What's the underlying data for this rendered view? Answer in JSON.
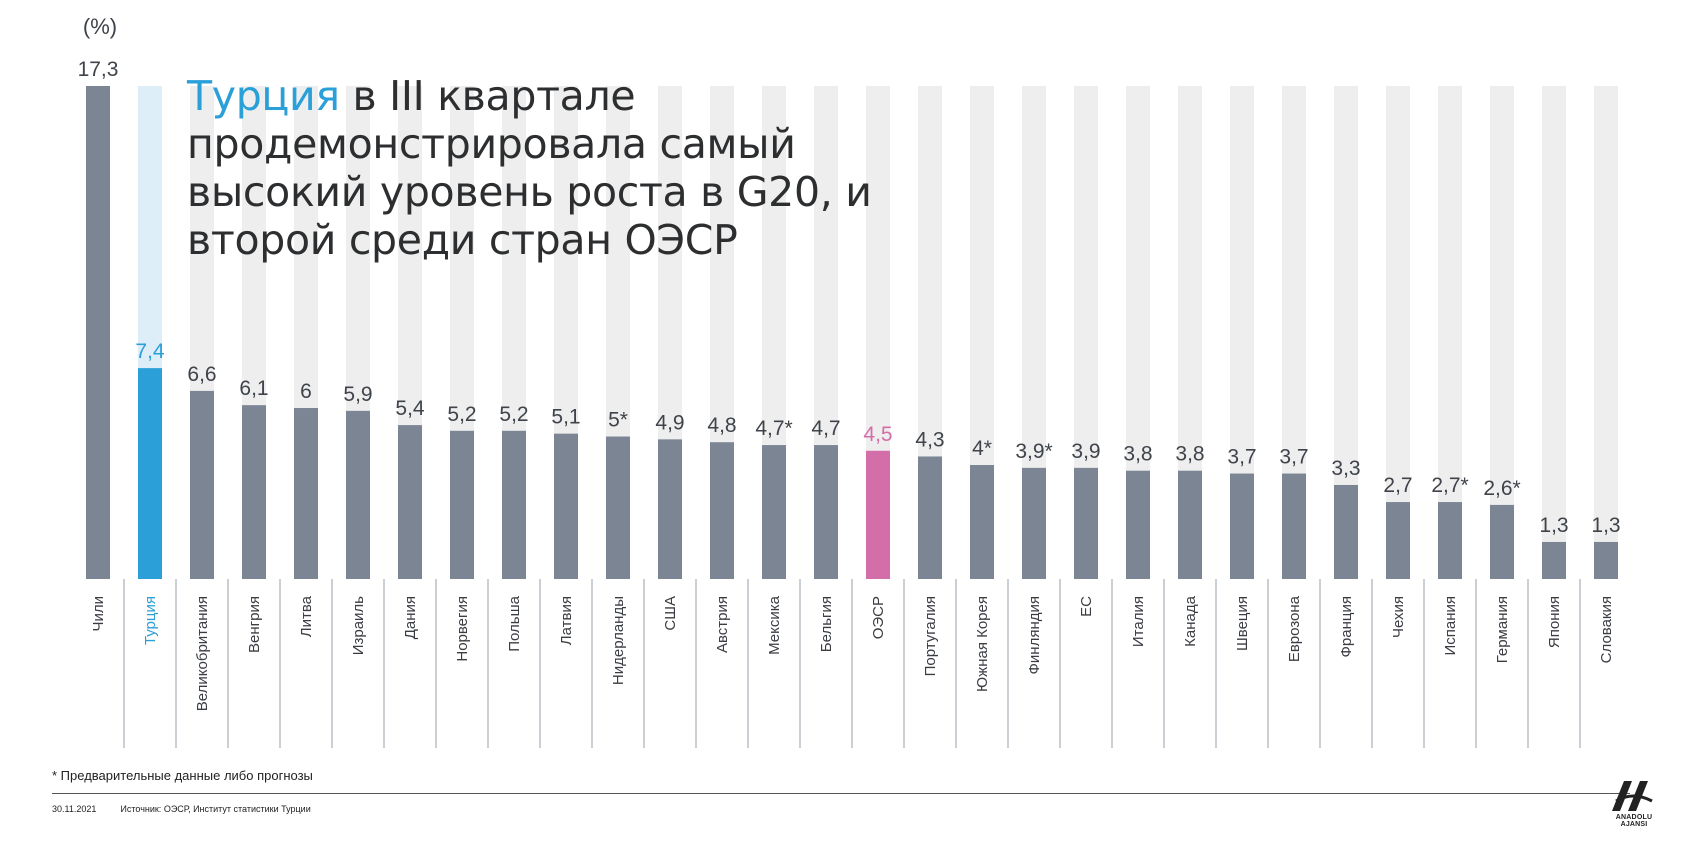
{
  "headline": {
    "highlight": "Турция",
    "rest": " в III квартале продемонстрировала самый высокий уровень роста в G20, и второй среди стран ОЭСР"
  },
  "unit": "(%)",
  "footnote": "* Предварительные данные либо прогнозы",
  "footer": {
    "date": "30.11.2021",
    "source": "Источник: ОЭСР, Институт статистики Турции"
  },
  "logo": {
    "icon": "aa-logo-icon",
    "text": "ANADOLU AJANSI"
  },
  "colors": {
    "bar": "#7b8594",
    "turkey": "#2a9fd8",
    "turkey_bg": "#ddeef9",
    "oecd": "#d46ea8",
    "bg_stripe": "#eeeeee",
    "text": "#3f434a"
  },
  "chart_data": {
    "type": "bar",
    "orientation": "vertical",
    "categories": [
      "Чили",
      "Турция",
      "Великобритания",
      "Венгрия",
      "Литва",
      "Израиль",
      "Дания",
      "Норвегия",
      "Польша",
      "Латвия",
      "Нидерланды",
      "США",
      "Австрия",
      "Мексика",
      "Бельгия",
      "ОЭСР",
      "Португалия",
      "Южная Корея",
      "Финляндия",
      "ЕС",
      "Италия",
      "Канада",
      "Швеция",
      "Еврозона",
      "Франция",
      "Чехия",
      "Испания",
      "Германия",
      "Япония",
      "Словакия"
    ],
    "values": [
      17.3,
      7.4,
      6.6,
      6.1,
      6,
      5.9,
      5.4,
      5.2,
      5.2,
      5.1,
      5,
      4.9,
      4.8,
      4.7,
      4.7,
      4.5,
      4.3,
      4,
      3.9,
      3.9,
      3.8,
      3.8,
      3.7,
      3.7,
      3.3,
      2.7,
      2.7,
      2.6,
      1.3,
      1.3
    ],
    "value_labels": [
      "17,3",
      "7,4",
      "6,6",
      "6,1",
      "6",
      "5,9",
      "5,4",
      "5,2",
      "5,2",
      "5,1",
      "5*",
      "4,9",
      "4,8",
      "4,7*",
      "4,7",
      "4,5",
      "4,3",
      "4*",
      "3,9*",
      "3,9",
      "3,8",
      "3,8",
      "3,7",
      "3,7",
      "3,3",
      "2,7",
      "2,7*",
      "2,6*",
      "1,3",
      "1,3"
    ],
    "highlight": {
      "Турция": "turkey",
      "ОЭСР": "oecd"
    },
    "ylim": [
      0,
      17.3
    ],
    "grid": false,
    "legend": "none"
  }
}
